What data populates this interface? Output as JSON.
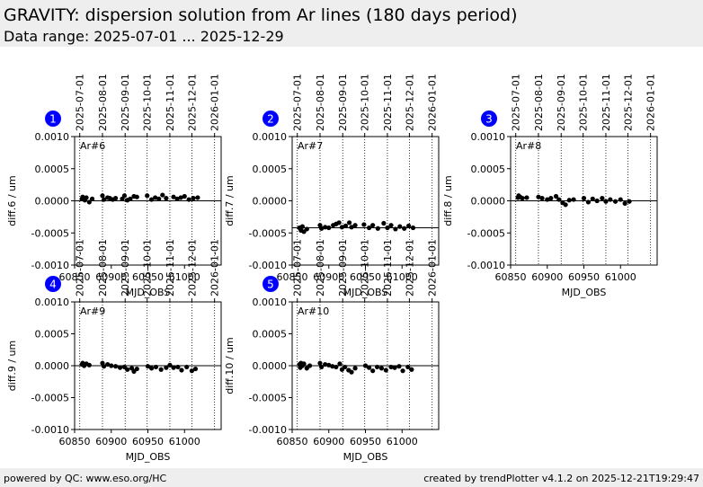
{
  "header": {
    "title": "GRAVITY: dispersion solution from Ar lines (180 days period)",
    "subtitle": "Data range: 2025-07-01 ... 2025-12-29"
  },
  "footer": {
    "left": "powered by QC: www.eso.org/HC",
    "right": "created by trendPlotter v4.1.2 on 2025-12-21T19:29:47"
  },
  "colors": {
    "marker": "#000000",
    "badge": "#0000ff",
    "reference_line": "#000000"
  },
  "chart_data": [
    {
      "type": "scatter",
      "badge": "1",
      "label": "Ar#6",
      "xlabel": "MJD_OBS",
      "ylabel": "diff.6 / um",
      "xlim": [
        60850,
        61050
      ],
      "ylim": [
        -0.001,
        0.001
      ],
      "xticks": [
        60850,
        60900,
        60950,
        61000
      ],
      "xtick_labels": [
        "60850",
        "60900",
        "60950",
        "61000"
      ],
      "yticks": [
        0.001,
        0.0005,
        0.0,
        -0.0005,
        -0.001
      ],
      "ytick_labels": [
        "0.0010",
        "0.0005",
        "0.0000",
        "-0.0005",
        "-0.0010"
      ],
      "date_ticks": [
        "2025-07-01",
        "2025-08-01",
        "2025-09-01",
        "2025-10-01",
        "2025-11-01",
        "2025-12-01",
        "2026-01-01"
      ],
      "date_tick_mjd": [
        60857,
        60888,
        60919,
        60949,
        60980,
        61010,
        61041
      ],
      "reference_line": 0.0,
      "x": [
        60860,
        60861,
        60862,
        60864,
        60866,
        60870,
        60874,
        60888,
        60890,
        60895,
        60898,
        60902,
        60906,
        60915,
        60918,
        60922,
        60926,
        60931,
        60935,
        60949,
        60955,
        60960,
        60965,
        60970,
        60975,
        60985,
        60990,
        60995,
        61000,
        61006,
        61012,
        61018
      ],
      "y": [
        3e-05,
        6e-05,
        4e-05,
        1e-05,
        5e-05,
        -2e-05,
        3e-05,
        8e-05,
        2e-05,
        5e-05,
        4e-05,
        2e-05,
        4e-05,
        3e-05,
        8e-05,
        1e-05,
        3e-05,
        7e-05,
        6e-05,
        8e-05,
        2e-05,
        5e-05,
        3e-05,
        9e-05,
        4e-05,
        6e-05,
        3e-05,
        5e-05,
        7e-05,
        2e-05,
        4e-05,
        5e-05
      ]
    },
    {
      "type": "scatter",
      "badge": "2",
      "label": "Ar#7",
      "xlabel": "MJD_OBS",
      "ylabel": "diff.7 / um",
      "xlim": [
        60850,
        61050
      ],
      "ylim": [
        -0.001,
        0.001
      ],
      "xticks": [
        60850,
        60900,
        60950,
        61000
      ],
      "xtick_labels": [
        "60850",
        "60900",
        "60950",
        "61000"
      ],
      "yticks": [
        0.001,
        0.0005,
        0.0,
        -0.0005,
        -0.001
      ],
      "ytick_labels": [
        "0.0010",
        "0.0005",
        "0.0000",
        "-0.0005",
        "-0.0010"
      ],
      "date_ticks": [
        "2025-07-01",
        "2025-08-01",
        "2025-09-01",
        "2025-10-01",
        "2025-11-01",
        "2025-12-01",
        "2026-01-01"
      ],
      "date_tick_mjd": [
        60857,
        60888,
        60919,
        60949,
        60980,
        61010,
        61041
      ],
      "reference_line": -0.00042,
      "x": [
        60860,
        60862,
        60864,
        60866,
        60870,
        60888,
        60890,
        60895,
        60900,
        60906,
        60910,
        60914,
        60918,
        60923,
        60928,
        60931,
        60936,
        60948,
        60955,
        60960,
        60967,
        60975,
        60980,
        60985,
        60991,
        60997,
        61003,
        61009,
        61015
      ],
      "y": [
        -0.00042,
        -0.00046,
        -0.0004,
        -0.00048,
        -0.00044,
        -0.00038,
        -0.00043,
        -0.00041,
        -0.00042,
        -0.00038,
        -0.00036,
        -0.00034,
        -0.00041,
        -0.00039,
        -0.00034,
        -0.00041,
        -0.00038,
        -0.00037,
        -0.00042,
        -0.00038,
        -0.00043,
        -0.00035,
        -0.00042,
        -0.00038,
        -0.00044,
        -0.0004,
        -0.00043,
        -0.00039,
        -0.00042
      ]
    },
    {
      "type": "scatter",
      "badge": "3",
      "label": "Ar#8",
      "xlabel": "MJD_OBS",
      "ylabel": "diff.8 / um",
      "xlim": [
        60850,
        61050
      ],
      "ylim": [
        -0.001,
        0.001
      ],
      "xticks": [
        60850,
        60900,
        60950,
        61000
      ],
      "xtick_labels": [
        "60850",
        "60900",
        "60950",
        "61000"
      ],
      "yticks": [
        0.001,
        0.0005,
        0.0,
        -0.0005,
        -0.001
      ],
      "ytick_labels": [
        "0.0010",
        "0.0005",
        "0.0000",
        "-0.0005",
        "-0.0010"
      ],
      "date_ticks": [
        "2025-07-01",
        "2025-08-01",
        "2025-09-01",
        "2025-10-01",
        "2025-11-01",
        "2025-12-01",
        "2026-01-01"
      ],
      "date_tick_mjd": [
        60857,
        60888,
        60919,
        60949,
        60980,
        61010,
        61041
      ],
      "reference_line": 0.0,
      "x": [
        60860,
        60861,
        60863,
        60866,
        60872,
        60888,
        60893,
        60900,
        60905,
        60912,
        60916,
        60921,
        60925,
        60930,
        60936,
        60950,
        60956,
        60962,
        60968,
        60975,
        60980,
        60986,
        60993,
        61000,
        61006,
        61012
      ],
      "y": [
        5e-05,
        8e-05,
        6e-05,
        4e-05,
        5e-05,
        6e-05,
        4e-05,
        2e-05,
        4e-05,
        7e-05,
        2e-05,
        -3e-05,
        -6e-05,
        1e-05,
        2e-05,
        4e-05,
        -2e-05,
        3e-05,
        0.0,
        4e-05,
        -1e-05,
        2e-05,
        -1e-05,
        2e-05,
        -4e-05,
        -1e-05
      ]
    },
    {
      "type": "scatter",
      "badge": "4",
      "label": "Ar#9",
      "xlabel": "MJD_OBS",
      "ylabel": "diff.9 / um",
      "xlim": [
        60850,
        61050
      ],
      "ylim": [
        -0.001,
        0.001
      ],
      "xticks": [
        60850,
        60900,
        60950,
        61000
      ],
      "xtick_labels": [
        "60850",
        "60900",
        "60950",
        "61000"
      ],
      "yticks": [
        0.001,
        0.0005,
        0.0,
        -0.0005,
        -0.001
      ],
      "ytick_labels": [
        "0.0010",
        "0.0005",
        "0.0000",
        "-0.0005",
        "-0.0010"
      ],
      "date_ticks": [
        "2025-07-01",
        "2025-08-01",
        "2025-09-01",
        "2025-10-01",
        "2025-11-01",
        "2025-12-01",
        "2026-01-01"
      ],
      "date_tick_mjd": [
        60857,
        60888,
        60919,
        60949,
        60980,
        61010,
        61041
      ],
      "reference_line": 0.0,
      "x": [
        60860,
        60861,
        60863,
        60866,
        60870,
        60888,
        60890,
        60895,
        60900,
        60906,
        60912,
        60918,
        60922,
        60928,
        60931,
        60935,
        60950,
        60955,
        60961,
        60968,
        60975,
        60980,
        60985,
        60991,
        60996,
        61003,
        61010,
        61015
      ],
      "y": [
        2e-05,
        4e-05,
        0.0,
        3e-05,
        1e-05,
        4e-05,
        -1e-05,
        2e-05,
        0.0,
        -1e-05,
        -3e-05,
        -2e-05,
        -6e-05,
        -4e-05,
        -9e-05,
        -5e-05,
        -1e-05,
        -4e-05,
        -2e-05,
        -6e-05,
        -3e-05,
        1e-05,
        -3e-05,
        -2e-05,
        -7e-05,
        -2e-05,
        -8e-05,
        -5e-05
      ]
    },
    {
      "type": "scatter",
      "badge": "5",
      "label": "Ar#10",
      "xlabel": "MJD_OBS",
      "ylabel": "diff.10 / um",
      "xlim": [
        60850,
        61050
      ],
      "ylim": [
        -0.001,
        0.001
      ],
      "xticks": [
        60850,
        60900,
        60950,
        61000
      ],
      "xtick_labels": [
        "60850",
        "60900",
        "60950",
        "61000"
      ],
      "yticks": [
        0.001,
        0.0005,
        0.0,
        -0.0005,
        -0.001
      ],
      "ytick_labels": [
        "0.0010",
        "0.0005",
        "0.0000",
        "-0.0005",
        "-0.0010"
      ],
      "date_ticks": [
        "2025-07-01",
        "2025-08-01",
        "2025-09-01",
        "2025-10-01",
        "2025-11-01",
        "2025-12-01",
        "2026-01-01"
      ],
      "date_tick_mjd": [
        60857,
        60888,
        60919,
        60949,
        60980,
        61010,
        61041
      ],
      "reference_line": 0.0,
      "x": [
        60860,
        60861,
        60862,
        60864,
        60866,
        60870,
        60874,
        60888,
        60890,
        60895,
        60900,
        60905,
        60910,
        60915,
        60918,
        60922,
        60927,
        60931,
        60936,
        60950,
        60955,
        60960,
        60966,
        60972,
        60978,
        60985,
        60990,
        60996,
        61001,
        61008,
        61013
      ],
      "y": [
        2e-05,
        -3e-05,
        4e-05,
        0.0,
        3e-05,
        -4e-05,
        0.0,
        4e-05,
        -2e-05,
        2e-05,
        1e-05,
        -1e-05,
        -2e-05,
        3e-05,
        -6e-05,
        -2e-05,
        -7e-05,
        -0.0001,
        -4e-05,
        0.0,
        -3e-05,
        -8e-05,
        -2e-05,
        -4e-05,
        -7e-05,
        -2e-05,
        -3e-05,
        -1e-05,
        -8e-05,
        -2e-05,
        -6e-05
      ]
    }
  ]
}
